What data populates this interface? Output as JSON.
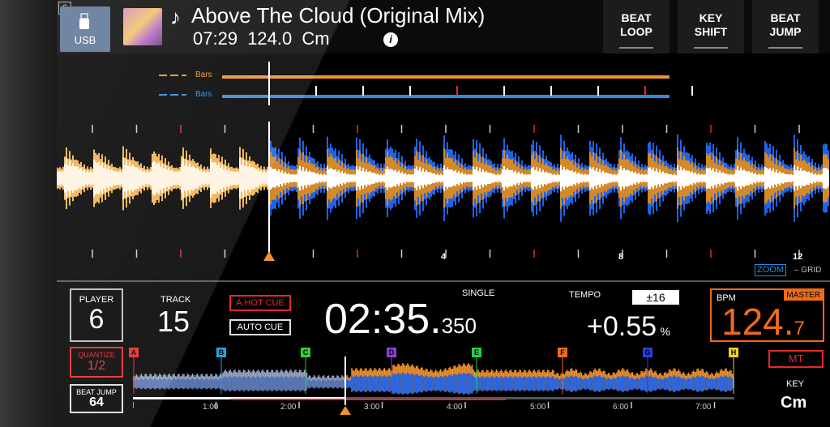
{
  "header": {
    "deck_number": "6",
    "source_label": "USB",
    "track_title": "Above The Cloud (Original Mix)",
    "track_time": "07:29",
    "track_bpm": "124.0",
    "track_key": "Cm",
    "buttons": [
      {
        "line1": "BEAT",
        "line2": "LOOP"
      },
      {
        "line1": "KEY",
        "line2": "SHIFT"
      },
      {
        "line1": "BEAT",
        "line2": "JUMP"
      }
    ]
  },
  "bars": {
    "label_top": "Bars",
    "label_bottom": "Bars"
  },
  "waveform": {
    "beat_labels": [
      "4",
      "8",
      "12"
    ],
    "zoom_label": "ZOOM",
    "grid_label": "GRID"
  },
  "status": {
    "player_label": "PLAYER",
    "player_value": "6",
    "track_label": "TRACK",
    "track_value": "15",
    "hot_cue_label": "A.HOT CUE",
    "auto_cue_label": "AUTO CUE",
    "mode_label": "SINGLE",
    "time_main": "02:35.",
    "time_ms": "350",
    "tempo_label": "TEMPO",
    "tempo_range": "±16",
    "tempo_value": "+0.55",
    "tempo_unit": "%",
    "bpm_label": "BPM",
    "master_label": "MASTER",
    "bpm_int": "124.",
    "bpm_dec": "7",
    "quantize_label": "QUANTIZE",
    "quantize_value": "1/2",
    "beat_jump_label": "BEAT JUMP",
    "beat_jump_value": "64",
    "mt_label": "MT",
    "key_label": "KEY",
    "key_value": "Cm"
  },
  "hot_cues": [
    {
      "letter": "A",
      "color": "#e8262c"
    },
    {
      "letter": "B",
      "color": "#22a5e0"
    },
    {
      "letter": "C",
      "color": "#2fd12f"
    },
    {
      "letter": "D",
      "color": "#8a3fe0"
    },
    {
      "letter": "E",
      "color": "#22d344"
    },
    {
      "letter": "F",
      "color": "#f06a1a"
    },
    {
      "letter": "G",
      "color": "#2a3fe6"
    },
    {
      "letter": "H",
      "color": "#f0d21a"
    }
  ],
  "timeline": [
    "1:00",
    "2:00",
    "3:00",
    "4:00",
    "5:00",
    "6:00",
    "7:00"
  ],
  "colors": {
    "orange": "#f0922e",
    "blue": "#1f63e8",
    "red": "#e8262c",
    "master": "#f06a1a"
  }
}
